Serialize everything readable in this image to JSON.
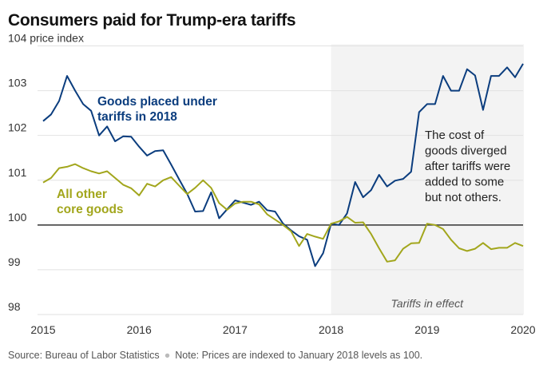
{
  "chart_data": {
    "type": "line",
    "title": "Consumers paid for Trump-era tariffs",
    "ylabel": "price index",
    "ylim": [
      98,
      104
    ],
    "yticks": [
      98,
      99,
      100,
      101,
      102,
      103,
      104
    ],
    "xlim": [
      2015,
      2020
    ],
    "xticks": [
      "2015",
      "2016",
      "2017",
      "2018",
      "2019",
      "2020"
    ],
    "baseline": 100,
    "shaded_region": {
      "from": 2018,
      "to": 2020.08,
      "label": "Tariffs in effect"
    },
    "annotation": [
      "The cost of",
      "goods diverged",
      "after tariffs were",
      "added to some",
      "but not others."
    ],
    "x_start": "2015-01",
    "x_step": "monthly",
    "series": [
      {
        "name": "Goods placed under tariffs in 2018",
        "label_lines": [
          "Goods placed under",
          "tariffs in 2018"
        ],
        "color": "#0b3d7e",
        "values": [
          102.32,
          102.47,
          102.77,
          103.33,
          103.0,
          102.7,
          102.55,
          102.0,
          102.2,
          101.87,
          101.98,
          101.97,
          101.75,
          101.55,
          101.65,
          101.67,
          101.35,
          101.02,
          100.7,
          100.3,
          100.31,
          100.73,
          100.15,
          100.35,
          100.55,
          100.5,
          100.45,
          100.52,
          100.33,
          100.3,
          100.03,
          99.88,
          99.75,
          99.67,
          99.08,
          99.37,
          100.03,
          100.0,
          100.26,
          100.96,
          100.62,
          100.78,
          101.12,
          100.86,
          100.99,
          101.03,
          101.19,
          102.52,
          102.7,
          102.7,
          103.33,
          103.0,
          103.0,
          103.48,
          103.34,
          102.57,
          103.33,
          103.33,
          103.52,
          103.3,
          103.6
        ]
      },
      {
        "name": "All other core goods",
        "label_lines": [
          "All other",
          "core goods"
        ],
        "color": "#a2a61c",
        "values": [
          100.95,
          101.05,
          101.27,
          101.3,
          101.36,
          101.27,
          101.2,
          101.15,
          101.2,
          101.05,
          100.9,
          100.82,
          100.66,
          100.92,
          100.86,
          101.0,
          101.07,
          100.88,
          100.69,
          100.83,
          101.0,
          100.83,
          100.49,
          100.34,
          100.48,
          100.52,
          100.52,
          100.46,
          100.24,
          100.12,
          100.0,
          99.86,
          99.53,
          99.8,
          99.74,
          99.69,
          100.03,
          100.08,
          100.18,
          100.05,
          100.06,
          99.8,
          99.48,
          99.18,
          99.21,
          99.47,
          99.59,
          99.6,
          100.03,
          100.0,
          99.91,
          99.67,
          99.48,
          99.42,
          99.47,
          99.6,
          99.46,
          99.49,
          99.49,
          99.6,
          99.53
        ]
      }
    ],
    "source": "Source: Bureau of Labor Statistics",
    "note": "Note: Prices are indexed to January 2018 levels as 100."
  }
}
